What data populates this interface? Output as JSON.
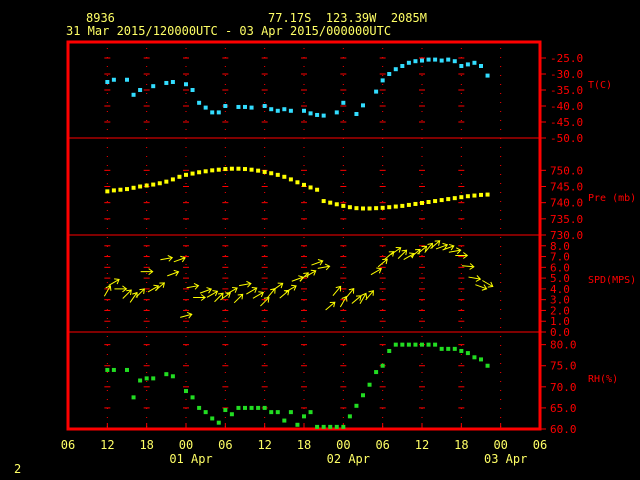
{
  "header": {
    "station_id": "8936",
    "location": "77.17S  123.39W  2085M",
    "period": "31 Mar 2015/120000UTC - 03 Apr 2015/000000UTC"
  },
  "footer": {
    "page_number": "2"
  },
  "colors": {
    "frame": "#ff0000",
    "text": "#ffff66",
    "temp": "#33ddff",
    "pres": "#ffff00",
    "wind": "#ffff00",
    "rh": "#22dd22"
  },
  "chart_data": [
    {
      "type": "scatter",
      "ylabel": "T(C)",
      "ylim": [
        -50,
        -20
      ],
      "yticks": [
        "-25.0",
        "-30.0",
        "-35.0",
        "-40.0",
        "-45.0",
        "-50.0"
      ],
      "x_hours": [
        12,
        13,
        15,
        16,
        17,
        19,
        21,
        22,
        24,
        25,
        26,
        27,
        28,
        29,
        30,
        32,
        33,
        34,
        36,
        37,
        38,
        39,
        40,
        42,
        43,
        44,
        45,
        47,
        48,
        50,
        51,
        53,
        54,
        55,
        56,
        57,
        58,
        59,
        60,
        61,
        62,
        63,
        64,
        65,
        66,
        67,
        68,
        69,
        70
      ],
      "values": [
        -32.5,
        -31.8,
        -31.8,
        -36.5,
        -35.0,
        -33.8,
        -32.8,
        -32.5,
        -33.2,
        -35.0,
        -39.0,
        -40.5,
        -42.0,
        -42.0,
        -40.0,
        -40.3,
        -40.3,
        -40.5,
        -40.0,
        -41.0,
        -41.5,
        -41.0,
        -41.5,
        -41.5,
        -42.3,
        -42.8,
        -43.0,
        -42.0,
        -39.0,
        -42.5,
        -39.8,
        -35.5,
        -32.0,
        -30.0,
        -28.5,
        -27.5,
        -26.5,
        -26.0,
        -25.8,
        -25.5,
        -25.5,
        -25.8,
        -25.5,
        -26.0,
        -27.5,
        -27.0,
        -26.5,
        -27.5,
        -30.5
      ]
    },
    {
      "type": "scatter",
      "ylabel": "Pre (mb)",
      "ylim": [
        730,
        760
      ],
      "yticks": [
        "750.0",
        "745.0",
        "740.0",
        "735.0",
        "730.0"
      ],
      "x_hours": [
        12,
        13,
        14,
        15,
        16,
        17,
        18,
        19,
        20,
        21,
        22,
        23,
        24,
        25,
        26,
        27,
        28,
        29,
        30,
        31,
        32,
        33,
        34,
        35,
        36,
        37,
        38,
        39,
        40,
        41,
        42,
        43,
        44,
        45,
        46,
        47,
        48,
        49,
        50,
        51,
        52,
        53,
        54,
        55,
        56,
        57,
        58,
        59,
        60,
        61,
        62,
        63,
        64,
        65,
        66,
        67,
        68,
        69,
        70
      ],
      "values": [
        743.5,
        743.8,
        744.0,
        744.2,
        744.6,
        745.0,
        745.3,
        745.6,
        746.0,
        746.5,
        747.2,
        748.0,
        748.6,
        749.0,
        749.4,
        749.7,
        750.0,
        750.2,
        750.4,
        750.5,
        750.5,
        750.4,
        750.2,
        749.9,
        749.5,
        749.1,
        748.6,
        748.0,
        747.2,
        746.3,
        745.5,
        744.7,
        744.0,
        740.5,
        740.0,
        739.5,
        739.0,
        738.6,
        738.3,
        738.2,
        738.2,
        738.3,
        738.4,
        738.6,
        738.8,
        739.0,
        739.3,
        739.6,
        739.9,
        740.2,
        740.5,
        740.8,
        741.1,
        741.4,
        741.7,
        742.0,
        742.2,
        742.4,
        742.5
      ]
    },
    {
      "type": "scatter",
      "ylabel": "SPD(MPS)",
      "ylim": [
        0,
        9
      ],
      "yticks": [
        "8.0",
        "7.0",
        "6.0",
        "5.0",
        "4.0",
        "3.0",
        "2.0",
        "1.0",
        "0.0"
      ],
      "x_hours": [
        12,
        13,
        14,
        15,
        16,
        17,
        18,
        19,
        20,
        21,
        22,
        23,
        24,
        25,
        26,
        27,
        28,
        29,
        30,
        31,
        32,
        33,
        34,
        35,
        36,
        37,
        38,
        39,
        40,
        41,
        42,
        43,
        44,
        45,
        46,
        47,
        48,
        49,
        50,
        51,
        52,
        53,
        54,
        55,
        56,
        57,
        58,
        59,
        60,
        61,
        62,
        63,
        64,
        65,
        66,
        67,
        68,
        69,
        70
      ],
      "values": [
        3.8,
        4.6,
        4.0,
        3.5,
        3.2,
        3.6,
        5.6,
        4.0,
        4.2,
        6.8,
        5.4,
        6.7,
        1.5,
        4.2,
        3.2,
        3.8,
        3.5,
        3.2,
        3.3,
        3.8,
        3.1,
        4.4,
        3.8,
        3.4,
        2.8,
        3.6,
        4.2,
        3.5,
        4.0,
        4.9,
        5.1,
        5.4,
        6.4,
        6.0,
        2.4,
        3.8,
        2.8,
        3.6,
        3.0,
        3.1,
        3.4,
        5.6,
        6.4,
        7.1,
        7.5,
        7.2,
        7.0,
        7.3,
        7.6,
        7.8,
        8.1,
        7.9,
        7.8,
        7.5,
        7.1,
        6.1,
        5.0,
        4.2,
        4.5
      ],
      "directions_deg": [
        30,
        60,
        90,
        45,
        35,
        45,
        90,
        60,
        50,
        80,
        70,
        70,
        75,
        80,
        90,
        70,
        60,
        45,
        55,
        60,
        45,
        80,
        60,
        60,
        45,
        40,
        55,
        50,
        60,
        70,
        45,
        60,
        70,
        80,
        50,
        40,
        30,
        40,
        50,
        30,
        40,
        60,
        50,
        50,
        55,
        45,
        60,
        50,
        50,
        40,
        50,
        70,
        70,
        80,
        90,
        95,
        100,
        110,
        120
      ]
    },
    {
      "type": "scatter",
      "ylabel": "RH(%)",
      "ylim": [
        60,
        83
      ],
      "yticks": [
        "80.0",
        "75.0",
        "70.0",
        "65.0",
        "60.0"
      ],
      "x_hours": [
        12,
        13,
        15,
        16,
        17,
        18,
        19,
        21,
        22,
        24,
        25,
        26,
        27,
        28,
        29,
        30,
        31,
        32,
        33,
        34,
        35,
        36,
        37,
        38,
        39,
        40,
        41,
        42,
        43,
        44,
        45,
        46,
        47,
        48,
        49,
        50,
        51,
        52,
        53,
        54,
        55,
        56,
        57,
        58,
        59,
        60,
        61,
        62,
        63,
        64,
        65,
        66,
        67,
        68,
        69,
        70
      ],
      "values": [
        74.0,
        74.0,
        74.0,
        67.5,
        71.5,
        72.0,
        72.0,
        73.0,
        72.5,
        69.0,
        67.5,
        65.0,
        64.0,
        62.5,
        61.5,
        64.5,
        63.5,
        65.0,
        65.0,
        65.0,
        65.0,
        65.0,
        64.0,
        64.0,
        62.0,
        64.0,
        61.0,
        63.0,
        64.0,
        60.5,
        60.5,
        60.5,
        60.5,
        60.5,
        63.0,
        65.5,
        68.0,
        70.5,
        73.5,
        75.0,
        78.5,
        80.0,
        80.0,
        80.0,
        80.0,
        80.0,
        80.0,
        80.0,
        79.0,
        79.0,
        79.0,
        78.5,
        78.0,
        77.0,
        76.5,
        75.0
      ]
    }
  ],
  "x_axis": {
    "hour_labels": [
      "06",
      "12",
      "18",
      "00",
      "06",
      "12",
      "18",
      "00",
      "06",
      "12",
      "18",
      "00",
      "06"
    ],
    "date_labels": [
      "01 Apr",
      "02 Apr",
      "03 Apr"
    ]
  }
}
